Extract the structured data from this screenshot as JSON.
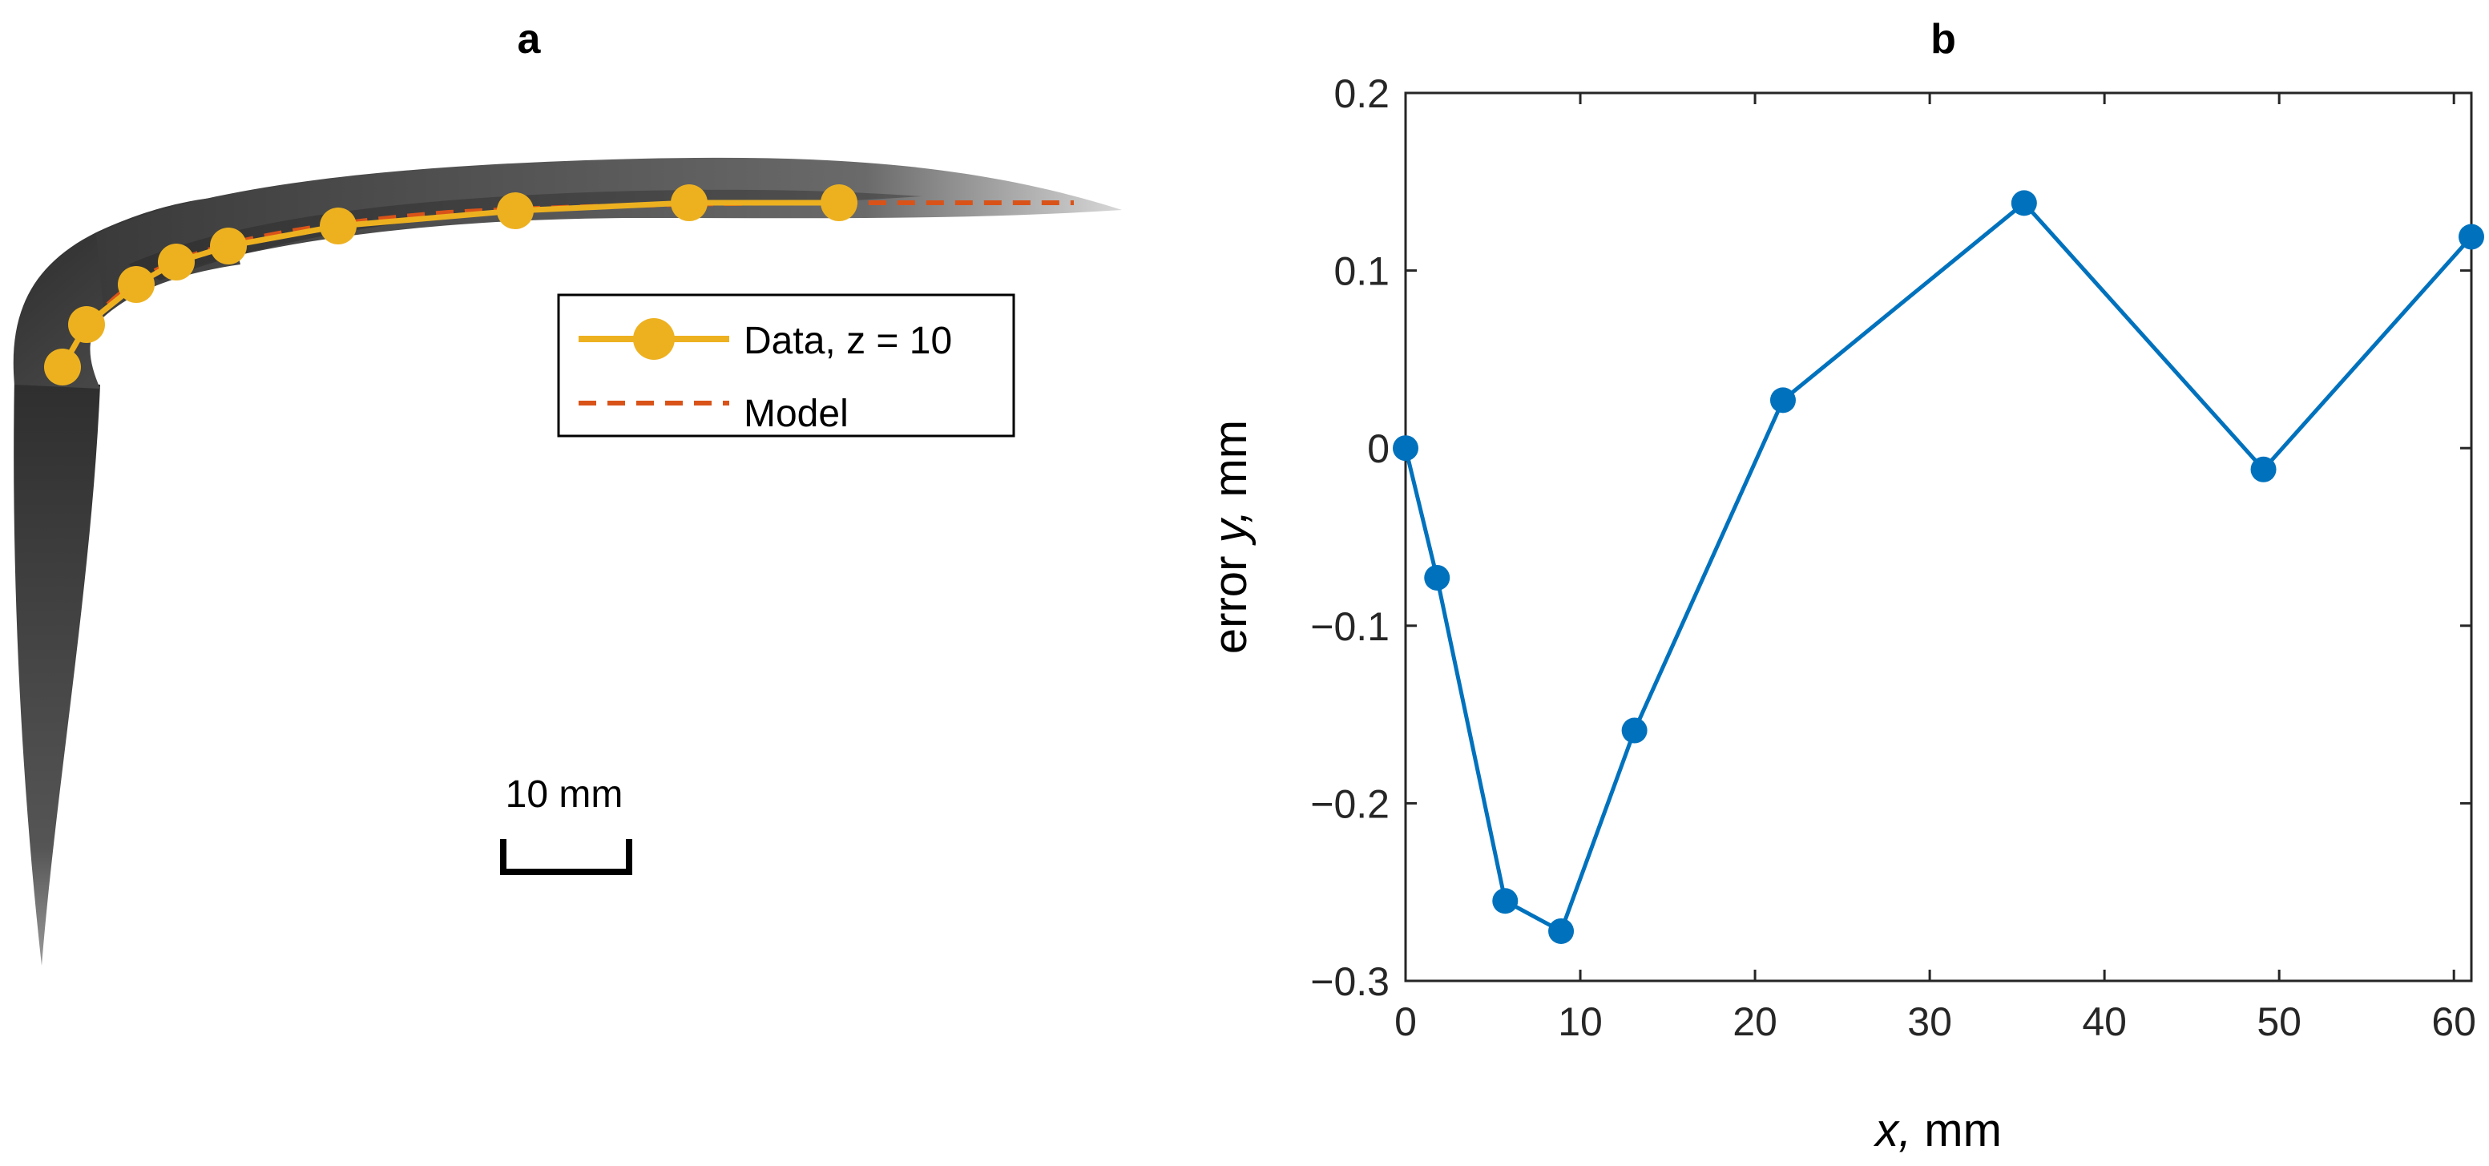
{
  "panel_a": {
    "label": "a",
    "legend": {
      "data_label": "Data, z = 10",
      "model_label": "Model"
    },
    "scale_bar_label": "10 mm",
    "colors": {
      "data": "#EDB120",
      "model": "#D95319",
      "specimen": "#3a3a3a"
    }
  },
  "panel_b": {
    "label": "b"
  },
  "chart_data": [
    {
      "type": "line",
      "title": "b",
      "xlabel_italic": "x,",
      "xlabel_rest": " mm",
      "ylabel_rest": "error ",
      "ylabel_italic": "y,",
      "ylabel_tail": " mm",
      "xlim": [
        0,
        61
      ],
      "ylim": [
        -0.3,
        0.2
      ],
      "xticks": [
        0,
        10,
        20,
        30,
        40,
        50,
        60
      ],
      "yticks": [
        -0.3,
        -0.2,
        -0.1,
        0,
        0.1,
        0.2
      ],
      "xtick_labels": [
        "0",
        "10",
        "20",
        "30",
        "40",
        "50",
        "60"
      ],
      "ytick_labels": [
        "−0.3",
        "−0.2",
        "−0.1",
        "0",
        "0.1",
        "0.2"
      ],
      "grid": false,
      "series": [
        {
          "name": "error",
          "color": "#0072BD",
          "x": [
            0,
            1.8,
            5.7,
            8.9,
            13.1,
            21.6,
            35.4,
            49.1,
            61
          ],
          "y": [
            0,
            -0.073,
            -0.255,
            -0.272,
            -0.159,
            0.027,
            0.138,
            -0.012,
            0.119
          ]
        }
      ]
    }
  ]
}
